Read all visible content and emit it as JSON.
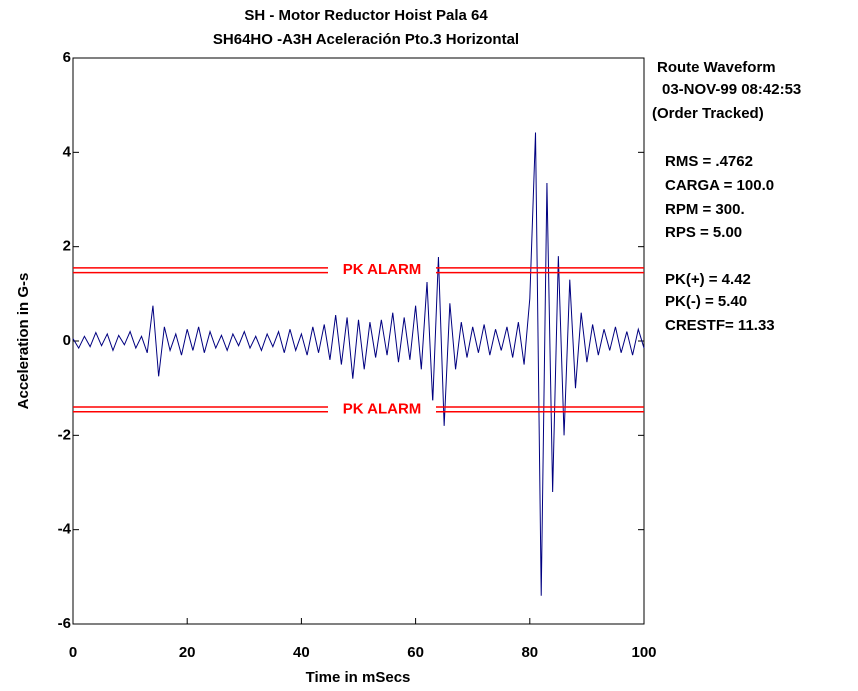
{
  "chart_data": {
    "type": "line",
    "title": "SH   - Motor Reductor Hoist Pala 64",
    "subtitle": "SH64HO    -A3H   Aceleración Pto.3 Horizontal",
    "x_label": "Time in mSecs",
    "y_label": "Acceleration in G-s",
    "xlim": [
      0,
      100
    ],
    "xticks": [
      0,
      20,
      40,
      60,
      80,
      100
    ],
    "ylim": [
      -6,
      6
    ],
    "yticks": [
      6,
      4,
      2,
      0,
      -2,
      -4,
      -6
    ],
    "x": [
      0,
      1,
      2,
      3,
      4,
      5,
      6,
      7,
      8,
      9,
      10,
      11,
      12,
      13,
      14,
      15,
      16,
      17,
      18,
      19,
      20,
      21,
      22,
      23,
      24,
      25,
      26,
      27,
      28,
      29,
      30,
      31,
      32,
      33,
      34,
      35,
      36,
      37,
      38,
      39,
      40,
      41,
      42,
      43,
      44,
      45,
      46,
      47,
      48,
      49,
      50,
      51,
      52,
      53,
      54,
      55,
      56,
      57,
      58,
      59,
      60,
      61,
      62,
      63,
      64,
      65,
      66,
      67,
      68,
      69,
      70,
      71,
      72,
      73,
      74,
      75,
      76,
      77,
      78,
      79,
      80,
      81,
      82,
      83,
      84,
      85,
      86,
      87,
      88,
      89,
      90,
      91,
      92,
      93,
      94,
      95,
      96,
      97,
      98,
      99,
      100
    ],
    "series": [
      {
        "name": "Route Waveform",
        "color": "#000080",
        "values": [
          0.05,
          -0.15,
          0.1,
          -0.12,
          0.18,
          -0.1,
          0.15,
          -0.2,
          0.12,
          -0.08,
          0.2,
          -0.15,
          0.1,
          -0.25,
          0.75,
          -0.75,
          0.3,
          -0.2,
          0.15,
          -0.3,
          0.25,
          -0.2,
          0.3,
          -0.25,
          0.2,
          -0.15,
          0.12,
          -0.2,
          0.15,
          -0.1,
          0.2,
          -0.15,
          0.1,
          -0.2,
          0.15,
          -0.12,
          0.2,
          -0.25,
          0.25,
          -0.2,
          0.15,
          -0.3,
          0.3,
          -0.25,
          0.35,
          -0.4,
          0.55,
          -0.5,
          0.5,
          -0.8,
          0.45,
          -0.6,
          0.4,
          -0.35,
          0.45,
          -0.3,
          0.6,
          -0.45,
          0.5,
          -0.4,
          0.75,
          -0.6,
          1.25,
          -1.3,
          1.78,
          -1.8,
          0.8,
          -0.6,
          0.4,
          -0.35,
          0.3,
          -0.25,
          0.35,
          -0.3,
          0.25,
          -0.2,
          0.3,
          -0.35,
          0.4,
          -0.5,
          0.9,
          4.42,
          -5.4,
          3.35,
          -3.2,
          1.8,
          -2.0,
          1.3,
          -1.0,
          0.6,
          -0.45,
          0.35,
          -0.3,
          0.25,
          -0.2,
          0.3,
          -0.25,
          0.2,
          -0.3,
          0.25,
          -0.15
        ]
      }
    ],
    "alarms": [
      {
        "label": "PK ALARM",
        "color": "#ff0000",
        "values": [
          1.55,
          1.45
        ]
      },
      {
        "label": "PK ALARM",
        "color": "#ff0000",
        "values": [
          -1.4,
          -1.5
        ]
      }
    ],
    "annotations": [
      "Route Waveform",
      "03-NOV-99  08:42:53",
      "(Order Tracked)",
      "RMS = .4762",
      "CARGA = 100.0",
      "RPM =  300.",
      "RPS =  5.00",
      "PK(+) = 4.42",
      "PK(-) = 5.40",
      "CRESTF= 11.33"
    ]
  }
}
